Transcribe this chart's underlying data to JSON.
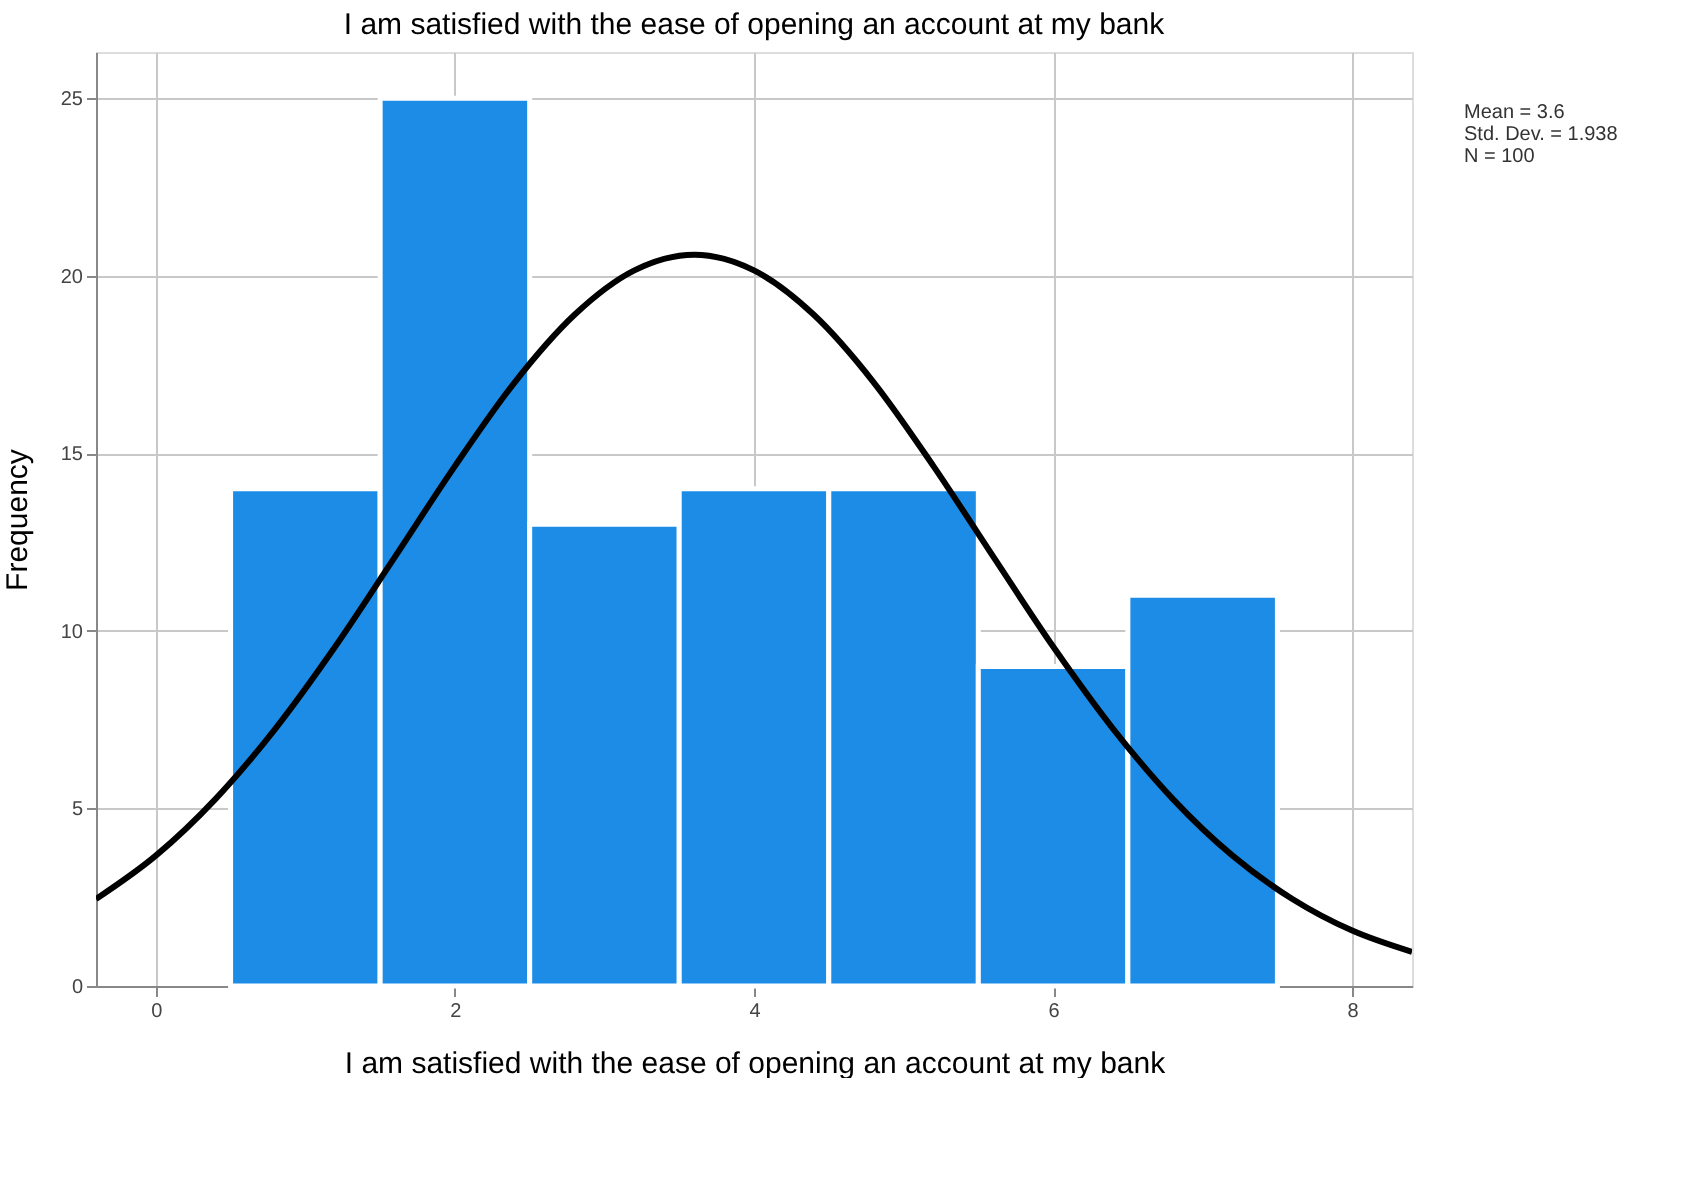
{
  "chart_data": {
    "type": "histogram",
    "title": "I am satisfied with the ease of opening an account at my bank",
    "xlabel": "I am satisfied with the ease of opening an account at my bank",
    "ylabel": "Frequency",
    "bins": [
      0.5,
      1.5,
      2.5,
      3.5,
      4.5,
      5.5,
      6.5,
      7.5
    ],
    "values": [
      14,
      25,
      13,
      14,
      14,
      9,
      11
    ],
    "color": "#1d8ce6",
    "series": [
      {
        "type": "line",
        "color": "#000000",
        "x": [
          -0.4,
          0.0,
          0.4,
          0.8,
          1.2,
          1.6,
          2.0,
          2.4,
          2.8,
          3.2,
          3.6,
          4.0,
          4.4,
          4.8,
          5.2,
          5.6,
          6.0,
          6.4,
          6.8,
          7.2,
          7.6,
          8.0,
          8.4
        ],
        "values": [
          2.45,
          3.67,
          5.27,
          7.25,
          9.56,
          12.09,
          14.64,
          17.0,
          18.9,
          20.15,
          20.59,
          20.15,
          18.9,
          17.0,
          14.64,
          12.09,
          9.56,
          7.25,
          5.27,
          3.67,
          2.45,
          1.56,
          0.96
        ]
      }
    ],
    "xlim": [
      -0.4,
      8.4
    ],
    "ylim": [
      0,
      26.3
    ],
    "xticks": [
      0,
      2,
      4,
      6,
      8
    ],
    "yticks": [
      0,
      5,
      10,
      15,
      20,
      25
    ],
    "grid": true,
    "annotations": [
      "Mean = 3.6",
      "Std. Dev. = 1.938",
      "N = 100"
    ]
  }
}
